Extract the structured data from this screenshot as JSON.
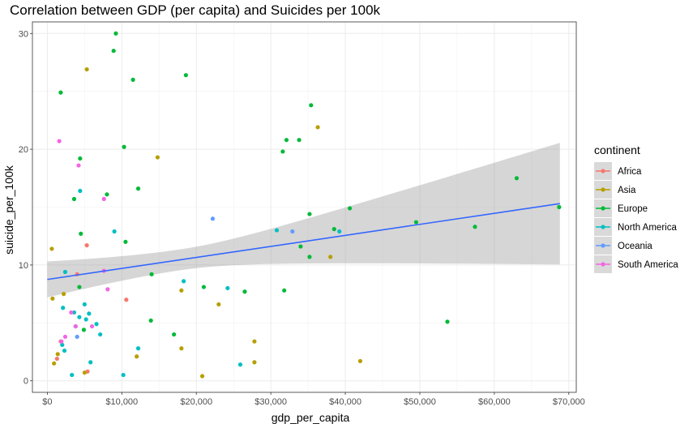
{
  "chart_data": {
    "type": "scatter",
    "title": "Correlation between GDP (per capita) and Suicides per 100k",
    "xlabel": "gdp_per_capita",
    "ylabel": "suicide_per_100k",
    "xlim": [
      -2000,
      71000
    ],
    "ylim": [
      -1,
      31
    ],
    "x_ticks": [
      0,
      10000,
      20000,
      30000,
      40000,
      50000,
      60000,
      70000
    ],
    "x_tick_labels": [
      "$0",
      "$10,000",
      "$20,000",
      "$30,000",
      "$40,000",
      "$50,000",
      "$60,000",
      "$70,000"
    ],
    "y_ticks": [
      0,
      10,
      20,
      30
    ],
    "y_tick_labels": [
      "0",
      "10",
      "20",
      "30"
    ],
    "grid": true,
    "legend_title": "continent",
    "legend_position": "right",
    "smooth": {
      "method": "lm",
      "x": [
        0,
        68800
      ],
      "y": [
        8.75,
        15.3
      ],
      "ci_lower": [
        7.15,
        10.1
      ],
      "ci_upper": [
        10.25,
        20.6
      ],
      "color": "#3366ff",
      "band_color": "#999999"
    },
    "series": [
      {
        "name": "Africa",
        "color": "#f8766d",
        "points": [
          [
            5300,
            11.7
          ],
          [
            4000,
            9.2
          ],
          [
            10600,
            7.0
          ],
          [
            5400,
            0.8
          ],
          [
            1300,
            1.9
          ],
          [
            1800,
            3.4
          ]
        ]
      },
      {
        "name": "Asia",
        "color": "#b79f00",
        "points": [
          [
            600,
            11.4
          ],
          [
            5300,
            26.9
          ],
          [
            14800,
            19.3
          ],
          [
            36300,
            21.9
          ],
          [
            38000,
            10.7
          ],
          [
            18000,
            7.8
          ],
          [
            23000,
            6.6
          ],
          [
            27800,
            3.4
          ],
          [
            18000,
            2.8
          ],
          [
            12000,
            2.1
          ],
          [
            27800,
            1.6
          ],
          [
            42000,
            1.7
          ],
          [
            20800,
            0.4
          ],
          [
            700,
            7.1
          ],
          [
            2200,
            7.5
          ],
          [
            900,
            1.5
          ],
          [
            1400,
            2.3
          ],
          [
            5000,
            0.7
          ]
        ]
      },
      {
        "name": "Europe",
        "color": "#00ba38",
        "points": [
          [
            9200,
            30.0
          ],
          [
            8900,
            28.5
          ],
          [
            1800,
            24.9
          ],
          [
            11500,
            26.0
          ],
          [
            18600,
            26.4
          ],
          [
            35400,
            23.8
          ],
          [
            32100,
            20.8
          ],
          [
            33800,
            20.8
          ],
          [
            31600,
            19.8
          ],
          [
            10300,
            20.2
          ],
          [
            4400,
            19.2
          ],
          [
            12200,
            16.6
          ],
          [
            8000,
            16.1
          ],
          [
            3600,
            15.7
          ],
          [
            35200,
            14.4
          ],
          [
            40600,
            14.9
          ],
          [
            63000,
            17.5
          ],
          [
            68700,
            15.0
          ],
          [
            49500,
            13.7
          ],
          [
            57400,
            13.3
          ],
          [
            38500,
            13.1
          ],
          [
            10500,
            12.0
          ],
          [
            4500,
            12.7
          ],
          [
            34000,
            11.6
          ],
          [
            35200,
            10.7
          ],
          [
            14000,
            9.2
          ],
          [
            21000,
            8.1
          ],
          [
            4300,
            8.1
          ],
          [
            26500,
            7.7
          ],
          [
            31800,
            7.8
          ],
          [
            53700,
            5.1
          ],
          [
            13900,
            5.2
          ],
          [
            17000,
            4.0
          ],
          [
            4900,
            4.4
          ]
        ]
      },
      {
        "name": "North America",
        "color": "#00bfc4",
        "points": [
          [
            4400,
            16.4
          ],
          [
            9000,
            12.9
          ],
          [
            30800,
            13.0
          ],
          [
            39200,
            12.9
          ],
          [
            2400,
            9.4
          ],
          [
            18300,
            8.6
          ],
          [
            24200,
            8.0
          ],
          [
            2100,
            6.3
          ],
          [
            3600,
            5.9
          ],
          [
            5000,
            6.6
          ],
          [
            5600,
            5.8
          ],
          [
            4300,
            5.5
          ],
          [
            6600,
            4.9
          ],
          [
            5200,
            5.3
          ],
          [
            7100,
            4.0
          ],
          [
            3800,
            4.7
          ],
          [
            12200,
            2.8
          ],
          [
            2000,
            3.1
          ],
          [
            2300,
            2.6
          ],
          [
            5800,
            1.6
          ],
          [
            3300,
            0.5
          ],
          [
            10200,
            0.5
          ],
          [
            25900,
            1.4
          ]
        ]
      },
      {
        "name": "Oceania",
        "color": "#619cff",
        "points": [
          [
            22200,
            14.0
          ],
          [
            32900,
            12.9
          ],
          [
            4000,
            3.8
          ]
        ]
      },
      {
        "name": "South America",
        "color": "#f564e3",
        "points": [
          [
            1600,
            20.7
          ],
          [
            4200,
            18.6
          ],
          [
            7600,
            15.7
          ],
          [
            7600,
            9.5
          ],
          [
            8100,
            7.9
          ],
          [
            3200,
            5.9
          ],
          [
            3800,
            4.7
          ],
          [
            6000,
            4.7
          ],
          [
            2400,
            3.8
          ],
          [
            1900,
            3.4
          ]
        ]
      }
    ]
  }
}
